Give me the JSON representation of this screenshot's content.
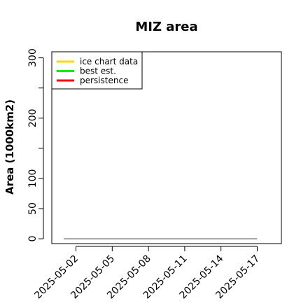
{
  "chart_data": {
    "type": "line",
    "title": "MIZ area",
    "xlabel": "",
    "ylabel": "Area (1000km2)",
    "y_ticks": [
      0,
      50,
      100,
      200,
      300
    ],
    "y_minor_ticks": [
      150,
      250
    ],
    "ylim": [
      -8,
      310
    ],
    "x_ticks": [
      "2025-05-02",
      "2025-05-05",
      "2025-05-08",
      "2025-05-11",
      "2025-05-14",
      "2025-05-17"
    ],
    "x_domain": [
      "2025-04-30",
      "2025-05-19"
    ],
    "series": [
      {
        "name": "ice chart data",
        "color": "#ffd700",
        "x": [],
        "y": []
      },
      {
        "name": "best est.",
        "color": "#00ee00",
        "x": [],
        "y": []
      },
      {
        "name": "persistence",
        "color": "#ff0000",
        "x": [],
        "y": []
      }
    ],
    "reference_line": {
      "color": "#808080",
      "x": [
        "2025-05-01",
        "2025-05-17"
      ],
      "y": [
        0,
        0
      ]
    },
    "legend_position": "top-left",
    "grid": false
  }
}
